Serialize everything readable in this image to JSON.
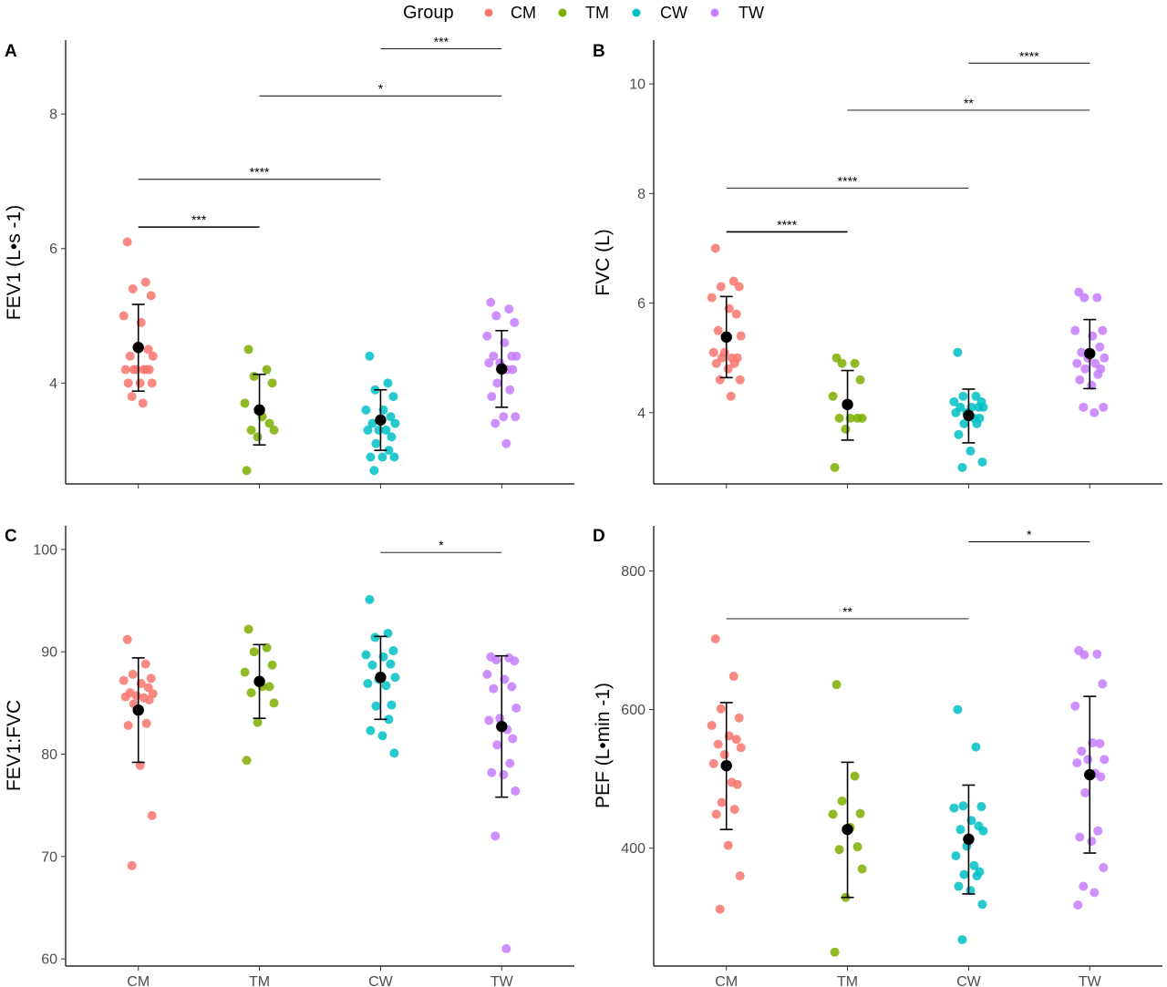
{
  "legend": {
    "title": "Group",
    "items": [
      {
        "label": "CM",
        "color": "#F8766D"
      },
      {
        "label": "TM",
        "color": "#7CAE00"
      },
      {
        "label": "CW",
        "color": "#00BFC4"
      },
      {
        "label": "TW",
        "color": "#C77CFF"
      }
    ]
  },
  "colors": {
    "summary": "#000000",
    "axis": "#000000"
  },
  "chart_data": [
    {
      "type": "scatter",
      "panel": "A",
      "ylabel": "FEV1 (L•s -1)",
      "categories": [
        "CM",
        "TM",
        "CW",
        "TW"
      ],
      "ylim": [
        2.5,
        9.1
      ],
      "yticks": [
        4,
        6,
        8
      ],
      "series": [
        {
          "name": "CM",
          "values": [
            6.1,
            5.5,
            5.4,
            5.3,
            5.0,
            4.9,
            4.5,
            4.4,
            4.4,
            4.2,
            4.2,
            4.2,
            4.2,
            4.2,
            4.2,
            4.0,
            4.0,
            4.0,
            3.8,
            3.7
          ]
        },
        {
          "name": "TM",
          "values": [
            4.5,
            4.2,
            4.1,
            4.0,
            3.7,
            3.5,
            3.4,
            3.3,
            3.3,
            3.2,
            2.7
          ]
        },
        {
          "name": "CW",
          "values": [
            4.4,
            4.0,
            3.9,
            3.8,
            3.6,
            3.6,
            3.5,
            3.4,
            3.4,
            3.3,
            3.3,
            3.3,
            3.2,
            3.1,
            3.0,
            2.9,
            2.9,
            2.9,
            2.7
          ]
        },
        {
          "name": "TW",
          "values": [
            5.2,
            5.1,
            5.0,
            4.9,
            4.7,
            4.6,
            4.4,
            4.4,
            4.4,
            4.3,
            4.3,
            4.2,
            4.2,
            4.0,
            3.9,
            3.8,
            3.5,
            3.5,
            3.4,
            3.1
          ]
        }
      ],
      "summary": [
        {
          "group": "CM",
          "mean": 4.53,
          "lower": 3.88,
          "upper": 5.17
        },
        {
          "group": "TM",
          "mean": 3.6,
          "lower": 3.08,
          "upper": 4.13
        },
        {
          "group": "CW",
          "mean": 3.45,
          "lower": 3.0,
          "upper": 3.9
        },
        {
          "group": "TW",
          "mean": 4.21,
          "lower": 3.64,
          "upper": 4.78
        }
      ],
      "significance": [
        {
          "from": "CM",
          "to": "TM",
          "y": 6.32,
          "label": "***",
          "thick": true
        },
        {
          "from": "CM",
          "to": "CW",
          "y": 7.03,
          "label": "****",
          "thick": false
        },
        {
          "from": "TM",
          "to": "TW",
          "y": 8.27,
          "label": "*",
          "thick": false
        },
        {
          "from": "CW",
          "to": "TW",
          "y": 8.97,
          "label": "***",
          "thick": false
        }
      ]
    },
    {
      "type": "scatter",
      "panel": "B",
      "ylabel": "FVC (L)",
      "categories": [
        "CM",
        "TM",
        "CW",
        "TW"
      ],
      "ylim": [
        2.7,
        10.8
      ],
      "yticks": [
        4,
        6,
        8,
        10
      ],
      "series": [
        {
          "name": "CM",
          "values": [
            7.0,
            6.4,
            6.3,
            6.3,
            6.1,
            5.9,
            5.8,
            5.5,
            5.4,
            5.1,
            5.1,
            5.0,
            5.0,
            5.0,
            4.9,
            4.9,
            4.8,
            4.6,
            4.6,
            4.3
          ]
        },
        {
          "name": "TM",
          "values": [
            5.0,
            4.9,
            4.9,
            4.6,
            4.3,
            3.9,
            3.9,
            3.9,
            3.9,
            3.7,
            3.0
          ]
        },
        {
          "name": "CW",
          "values": [
            5.1,
            4.3,
            4.3,
            4.2,
            4.2,
            4.1,
            4.1,
            4.1,
            4.1,
            4.0,
            4.0,
            3.9,
            3.9,
            3.8,
            3.8,
            3.6,
            3.3,
            3.1,
            3.0
          ]
        },
        {
          "name": "TW",
          "values": [
            6.2,
            6.1,
            6.1,
            5.5,
            5.5,
            5.4,
            5.2,
            5.1,
            5.0,
            5.0,
            4.9,
            4.9,
            4.8,
            4.8,
            4.7,
            4.6,
            4.5,
            4.1,
            4.1,
            4.0
          ]
        }
      ],
      "summary": [
        {
          "group": "CM",
          "mean": 5.38,
          "lower": 4.64,
          "upper": 6.12
        },
        {
          "group": "TM",
          "mean": 4.15,
          "lower": 3.5,
          "upper": 4.77
        },
        {
          "group": "CW",
          "mean": 3.95,
          "lower": 3.45,
          "upper": 4.43
        },
        {
          "group": "TW",
          "mean": 5.08,
          "lower": 4.44,
          "upper": 5.7
        }
      ],
      "significance": [
        {
          "from": "CM",
          "to": "TM",
          "y": 7.3,
          "label": "****",
          "thick": true
        },
        {
          "from": "CM",
          "to": "CW",
          "y": 8.1,
          "label": "****",
          "thick": false
        },
        {
          "from": "TM",
          "to": "TW",
          "y": 9.52,
          "label": "**",
          "thick": false
        },
        {
          "from": "CW",
          "to": "TW",
          "y": 10.38,
          "label": "****",
          "thick": false
        }
      ]
    },
    {
      "type": "scatter",
      "panel": "C",
      "ylabel": "FEV1:FVC",
      "categories": [
        "CM",
        "TM",
        "CW",
        "TW"
      ],
      "ylim": [
        59.3,
        102.3
      ],
      "yticks": [
        60,
        70,
        80,
        90,
        100
      ],
      "series": [
        {
          "name": "CM",
          "values": [
            91.2,
            88.8,
            87.8,
            87.4,
            87.2,
            86.9,
            86.5,
            86.0,
            85.9,
            85.7,
            85.6,
            85.5,
            85.3,
            84.9,
            83.0,
            82.8,
            78.9,
            74.0,
            69.1
          ]
        },
        {
          "name": "TM",
          "values": [
            92.2,
            90.4,
            90.0,
            88.7,
            88.0,
            86.6,
            86.6,
            86.0,
            85.0,
            83.1,
            79.4
          ]
        },
        {
          "name": "CW",
          "values": [
            95.1,
            91.8,
            91.4,
            90.1,
            89.7,
            89.5,
            88.8,
            88.7,
            87.5,
            87.3,
            86.9,
            86.7,
            84.8,
            84.7,
            83.4,
            82.3,
            81.8,
            80.1
          ]
        },
        {
          "name": "TW",
          "values": [
            89.5,
            89.4,
            89.2,
            89.1,
            87.8,
            87.3,
            86.6,
            86.4,
            84.5,
            83.5,
            83.3,
            82.4,
            81.5,
            80.9,
            79.1,
            78.2,
            78.0,
            76.4,
            72.0,
            61.0
          ]
        }
      ],
      "summary": [
        {
          "group": "CM",
          "mean": 84.3,
          "lower": 79.2,
          "upper": 89.4
        },
        {
          "group": "TM",
          "mean": 87.1,
          "lower": 83.5,
          "upper": 90.7
        },
        {
          "group": "CW",
          "mean": 87.5,
          "lower": 83.4,
          "upper": 91.5
        },
        {
          "group": "TW",
          "mean": 82.7,
          "lower": 75.8,
          "upper": 89.6
        }
      ],
      "significance": [
        {
          "from": "CW",
          "to": "TW",
          "y": 99.7,
          "label": "*",
          "thick": false
        }
      ]
    },
    {
      "type": "scatter",
      "panel": "D",
      "ylabel": "PEF (L•min -1)",
      "categories": [
        "CM",
        "TM",
        "CW",
        "TW"
      ],
      "ylim": [
        230,
        865
      ],
      "yticks": [
        400,
        600,
        800
      ],
      "series": [
        {
          "name": "CM",
          "values": [
            702,
            648,
            601,
            588,
            577,
            562,
            557,
            550,
            545,
            535,
            522,
            495,
            492,
            466,
            456,
            449,
            404,
            360,
            312
          ]
        },
        {
          "name": "TM",
          "values": [
            636,
            504,
            468,
            450,
            449,
            430,
            402,
            398,
            370,
            329,
            250
          ]
        },
        {
          "name": "CW",
          "values": [
            600,
            546,
            461,
            460,
            458,
            440,
            432,
            427,
            425,
            403,
            389,
            375,
            366,
            362,
            360,
            345,
            339,
            319,
            268
          ]
        },
        {
          "name": "TW",
          "values": [
            685,
            680,
            679,
            637,
            605,
            552,
            551,
            540,
            528,
            528,
            523,
            508,
            503,
            480,
            425,
            416,
            410,
            372,
            345,
            336,
            318
          ]
        }
      ],
      "summary": [
        {
          "group": "CM",
          "mean": 519,
          "lower": 427,
          "upper": 610
        },
        {
          "group": "TM",
          "mean": 427,
          "lower": 329,
          "upper": 524
        },
        {
          "group": "CW",
          "mean": 413,
          "lower": 334,
          "upper": 491
        },
        {
          "group": "TW",
          "mean": 506,
          "lower": 393,
          "upper": 619
        }
      ],
      "significance": [
        {
          "from": "CM",
          "to": "CW",
          "y": 731,
          "label": "**",
          "thick": false
        },
        {
          "from": "CW",
          "to": "TW",
          "y": 842,
          "label": "*",
          "thick": false
        }
      ]
    }
  ]
}
